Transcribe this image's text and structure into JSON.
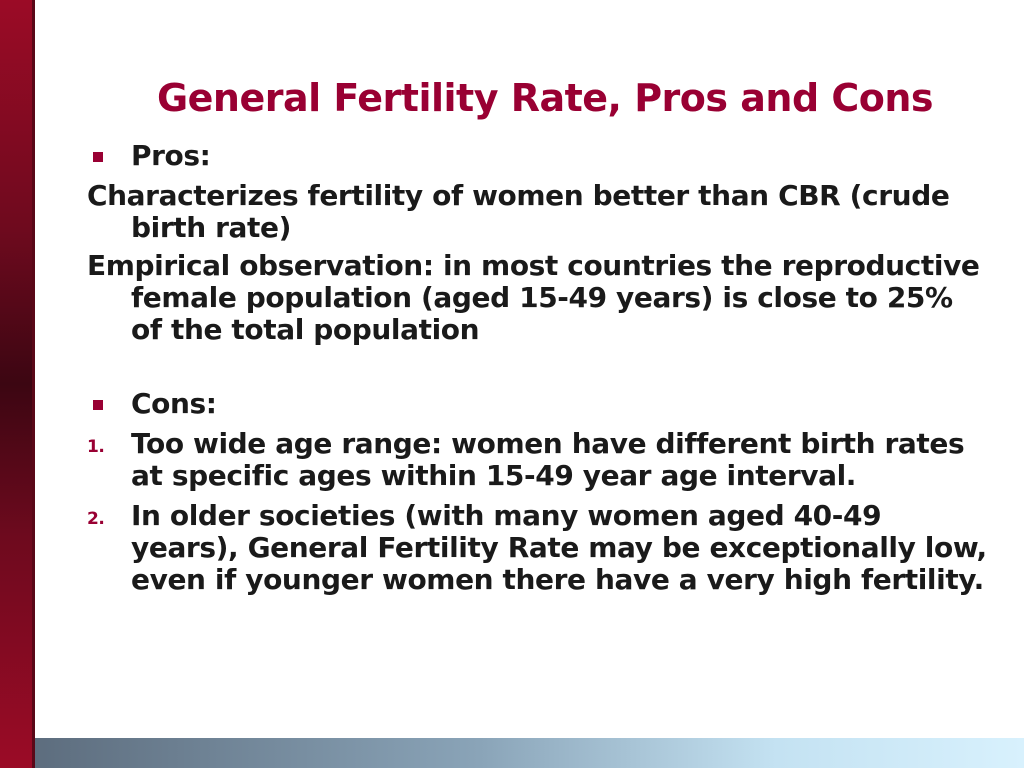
{
  "slide": {
    "title": "General Fertility Rate, Pros and Cons",
    "pros_heading": "Pros:",
    "pros_items": [
      "Characterizes fertility of women better than CBR (crude birth rate)",
      "Empirical observation: in most countries the reproductive female population (aged 15-49 years) is close to 25% of the total population"
    ],
    "cons_heading": "Cons:",
    "cons_items": [
      {
        "number": "1.",
        "text": "Too wide age range: women have different birth rates at specific ages within 15-49 year age interval."
      },
      {
        "number": "2.",
        "text": "In older societies (with many women aged 40-49 years), General Fertility Rate may be exceptionally low, even if younger women there have a very high fertility."
      }
    ]
  },
  "colors": {
    "accent": "#990033",
    "text": "#1a1a1a",
    "background": "#ffffff"
  }
}
